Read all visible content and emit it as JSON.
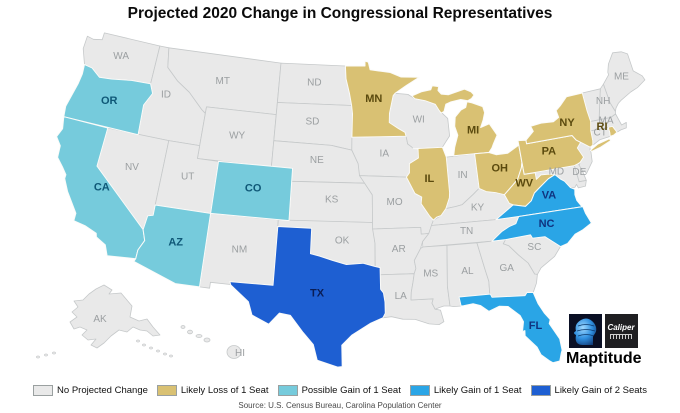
{
  "title": "Projected 2020 Change in Congressional Representatives",
  "source": "Source: U.S. Census Bureau, Carolina Population Center",
  "logo": {
    "brand": "Maptitude",
    "partner": "Caliper"
  },
  "legend": {
    "items": [
      {
        "id": "none",
        "label": "No Projected Change",
        "color": "#e9e9e9",
        "label_color": "#9b9fa1"
      },
      {
        "id": "loss1",
        "label": "Likely Loss of 1 Seat",
        "color": "#d9c173",
        "label_color": "#5b4a0e"
      },
      {
        "id": "gain1p",
        "label": "Possible Gain of 1 Seat",
        "color": "#76cbdc",
        "label_color": "#0f5877"
      },
      {
        "id": "gain1",
        "label": "Likely Gain of 1 Seat",
        "color": "#2aa5e6",
        "label_color": "#10337f"
      },
      {
        "id": "gain2",
        "label": "Likely Gain of 2 Seats",
        "color": "#1e5fd2",
        "label_color": "#0a1d55"
      }
    ]
  },
  "map": {
    "states": [
      {
        "abbr": "WA",
        "category": "none"
      },
      {
        "abbr": "ID",
        "category": "none"
      },
      {
        "abbr": "MT",
        "category": "none"
      },
      {
        "abbr": "WY",
        "category": "none"
      },
      {
        "abbr": "NV",
        "category": "none"
      },
      {
        "abbr": "UT",
        "category": "none"
      },
      {
        "abbr": "NM",
        "category": "none"
      },
      {
        "abbr": "ND",
        "category": "none"
      },
      {
        "abbr": "SD",
        "category": "none"
      },
      {
        "abbr": "NE",
        "category": "none"
      },
      {
        "abbr": "KS",
        "category": "none"
      },
      {
        "abbr": "OK",
        "category": "none"
      },
      {
        "abbr": "IA",
        "category": "none"
      },
      {
        "abbr": "MO",
        "category": "none"
      },
      {
        "abbr": "AR",
        "category": "none"
      },
      {
        "abbr": "LA",
        "category": "none"
      },
      {
        "abbr": "WI",
        "category": "none"
      },
      {
        "abbr": "IN",
        "category": "none"
      },
      {
        "abbr": "KY",
        "category": "none"
      },
      {
        "abbr": "TN",
        "category": "none"
      },
      {
        "abbr": "MS",
        "category": "none"
      },
      {
        "abbr": "AL",
        "category": "none"
      },
      {
        "abbr": "GA",
        "category": "none"
      },
      {
        "abbr": "SC",
        "category": "none"
      },
      {
        "abbr": "ME",
        "category": "none"
      },
      {
        "abbr": "NH",
        "category": "none"
      },
      {
        "abbr": "VT",
        "category": "none",
        "label": false
      },
      {
        "abbr": "MA",
        "category": "none"
      },
      {
        "abbr": "CT",
        "category": "none"
      },
      {
        "abbr": "NJ",
        "category": "none",
        "label": false
      },
      {
        "abbr": "MD",
        "category": "none"
      },
      {
        "abbr": "DE",
        "category": "none"
      },
      {
        "abbr": "AK",
        "category": "none"
      },
      {
        "abbr": "HI",
        "category": "none"
      },
      {
        "abbr": "MN",
        "category": "loss1"
      },
      {
        "abbr": "MI",
        "category": "loss1"
      },
      {
        "abbr": "IL",
        "category": "loss1"
      },
      {
        "abbr": "OH",
        "category": "loss1"
      },
      {
        "abbr": "PA",
        "category": "loss1"
      },
      {
        "abbr": "NY",
        "category": "loss1"
      },
      {
        "abbr": "WV",
        "category": "loss1"
      },
      {
        "abbr": "RI",
        "category": "loss1"
      },
      {
        "abbr": "OR",
        "category": "gain1p"
      },
      {
        "abbr": "CA",
        "category": "gain1p"
      },
      {
        "abbr": "CO",
        "category": "gain1p"
      },
      {
        "abbr": "AZ",
        "category": "gain1p"
      },
      {
        "abbr": "VA",
        "category": "gain1"
      },
      {
        "abbr": "NC",
        "category": "gain1"
      },
      {
        "abbr": "FL",
        "category": "gain1"
      },
      {
        "abbr": "TX",
        "category": "gain2"
      }
    ]
  }
}
